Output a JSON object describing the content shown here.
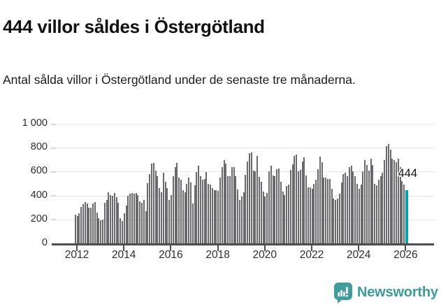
{
  "header": {
    "title": "444 villor såldes i Östergötland",
    "subtitle": "Antal sålda villor i Östergötland under de senaste tre månaderna."
  },
  "chart_data": {
    "type": "bar",
    "title": "444 villor såldes i Östergötland",
    "subtitle": "Antal sålda villor i Östergötland under de senaste tre månaderna.",
    "xlabel": "",
    "ylabel": "",
    "ylim": [
      0,
      1000
    ],
    "grid": "horizontal",
    "x_monthly_start": "2012-01",
    "x_monthly_end": "2026-02",
    "yticks": [
      {
        "v": 0,
        "label": "0"
      },
      {
        "v": 200,
        "label": "200"
      },
      {
        "v": 400,
        "label": "400"
      },
      {
        "v": 600,
        "label": "600"
      },
      {
        "v": 800,
        "label": "800"
      },
      {
        "v": 1000,
        "label": "1 000"
      }
    ],
    "xticks": [
      2012,
      2014,
      2016,
      2018,
      2020,
      2022,
      2024,
      2026
    ],
    "values": [
      240,
      230,
      250,
      305,
      330,
      345,
      335,
      300,
      300,
      335,
      345,
      255,
      210,
      195,
      200,
      340,
      360,
      425,
      405,
      400,
      420,
      385,
      340,
      210,
      185,
      250,
      315,
      400,
      415,
      420,
      415,
      420,
      405,
      350,
      340,
      360,
      270,
      505,
      580,
      665,
      675,
      610,
      560,
      460,
      425,
      590,
      515,
      460,
      365,
      405,
      560,
      635,
      670,
      550,
      530,
      445,
      425,
      500,
      550,
      510,
      335,
      485,
      595,
      650,
      560,
      530,
      540,
      595,
      500,
      490,
      460,
      445,
      445,
      440,
      550,
      635,
      695,
      665,
      560,
      560,
      635,
      635,
      560,
      450,
      365,
      390,
      425,
      575,
      685,
      755,
      760,
      610,
      605,
      730,
      555,
      515,
      430,
      390,
      420,
      605,
      650,
      570,
      560,
      620,
      625,
      515,
      435,
      405,
      480,
      490,
      615,
      660,
      730,
      740,
      605,
      615,
      685,
      720,
      570,
      465,
      465,
      455,
      495,
      530,
      620,
      725,
      680,
      550,
      550,
      540,
      540,
      455,
      375,
      360,
      375,
      415,
      510,
      580,
      590,
      560,
      640,
      650,
      605,
      560,
      495,
      455,
      490,
      600,
      695,
      655,
      610,
      705,
      655,
      500,
      485,
      530,
      560,
      590,
      695,
      815,
      830,
      785,
      705,
      695,
      680,
      705,
      640,
      520,
      490,
      444
    ],
    "bar_color": "#69696e",
    "highlight": {
      "index": 169,
      "value": 444,
      "label": "444",
      "color": "#00a3a6"
    }
  },
  "footer": {
    "brand": "Newsworthy",
    "brand_color": "#3a9c9c",
    "logo_icon": "bar-chart-speech-bubble-icon"
  }
}
